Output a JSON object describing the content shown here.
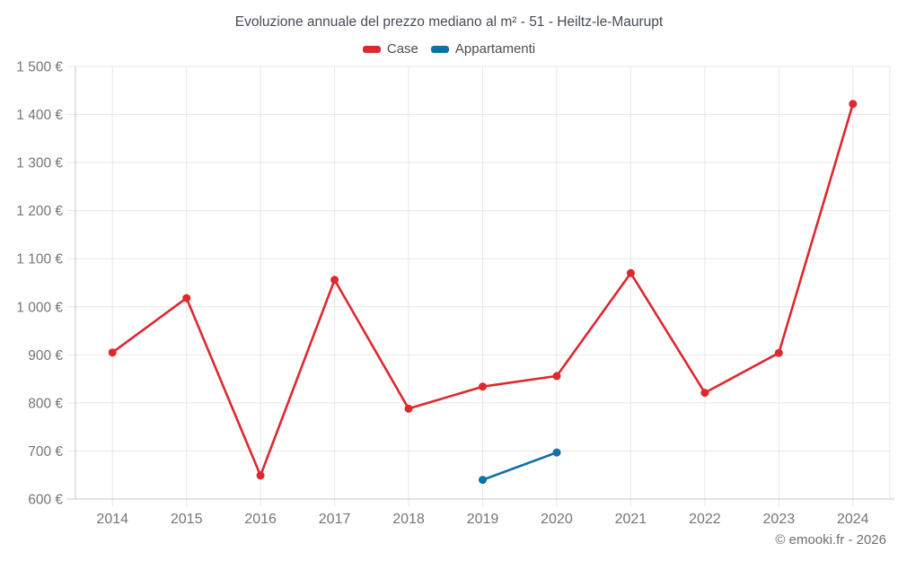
{
  "chart": {
    "title": "Evoluzione annuale del prezzo mediano al m² - 51 - Heiltz-le-Maurupt",
    "attribution": "© emooki.fr - 2026"
  },
  "legend": [
    {
      "label": "Case",
      "color": "#dd282e"
    },
    {
      "label": "Appartamenti",
      "color": "#1270a8"
    }
  ],
  "chart_data": {
    "type": "line",
    "title": "Evoluzione annuale del prezzo mediano al m² - 51 - Heiltz-le-Maurupt",
    "categories": [
      "2014",
      "2015",
      "2016",
      "2017",
      "2018",
      "2019",
      "2020",
      "2021",
      "2022",
      "2023",
      "2024"
    ],
    "series": [
      {
        "name": "Case",
        "color": "#dd282e",
        "values": [
          905,
          1018,
          649,
          1056,
          788,
          834,
          856,
          1070,
          821,
          904,
          1422
        ]
      },
      {
        "name": "Appartamenti",
        "color": "#1270a8",
        "values": [
          null,
          null,
          null,
          null,
          null,
          640,
          697,
          null,
          null,
          null,
          null
        ]
      }
    ],
    "xlabel": "",
    "ylabel": "",
    "ylim": [
      600,
      1500
    ],
    "y_tick_step": 100,
    "y_tick_labels": [
      "600 €",
      "700 €",
      "800 €",
      "900 €",
      "1 000 €",
      "1 100 €",
      "1 200 €",
      "1 300 €",
      "1 400 €",
      "1 500 €"
    ],
    "grid": true,
    "legend_position": "top"
  },
  "style": {
    "grid_color": "#e8e8e8",
    "axis_color": "#c7c7c7"
  }
}
